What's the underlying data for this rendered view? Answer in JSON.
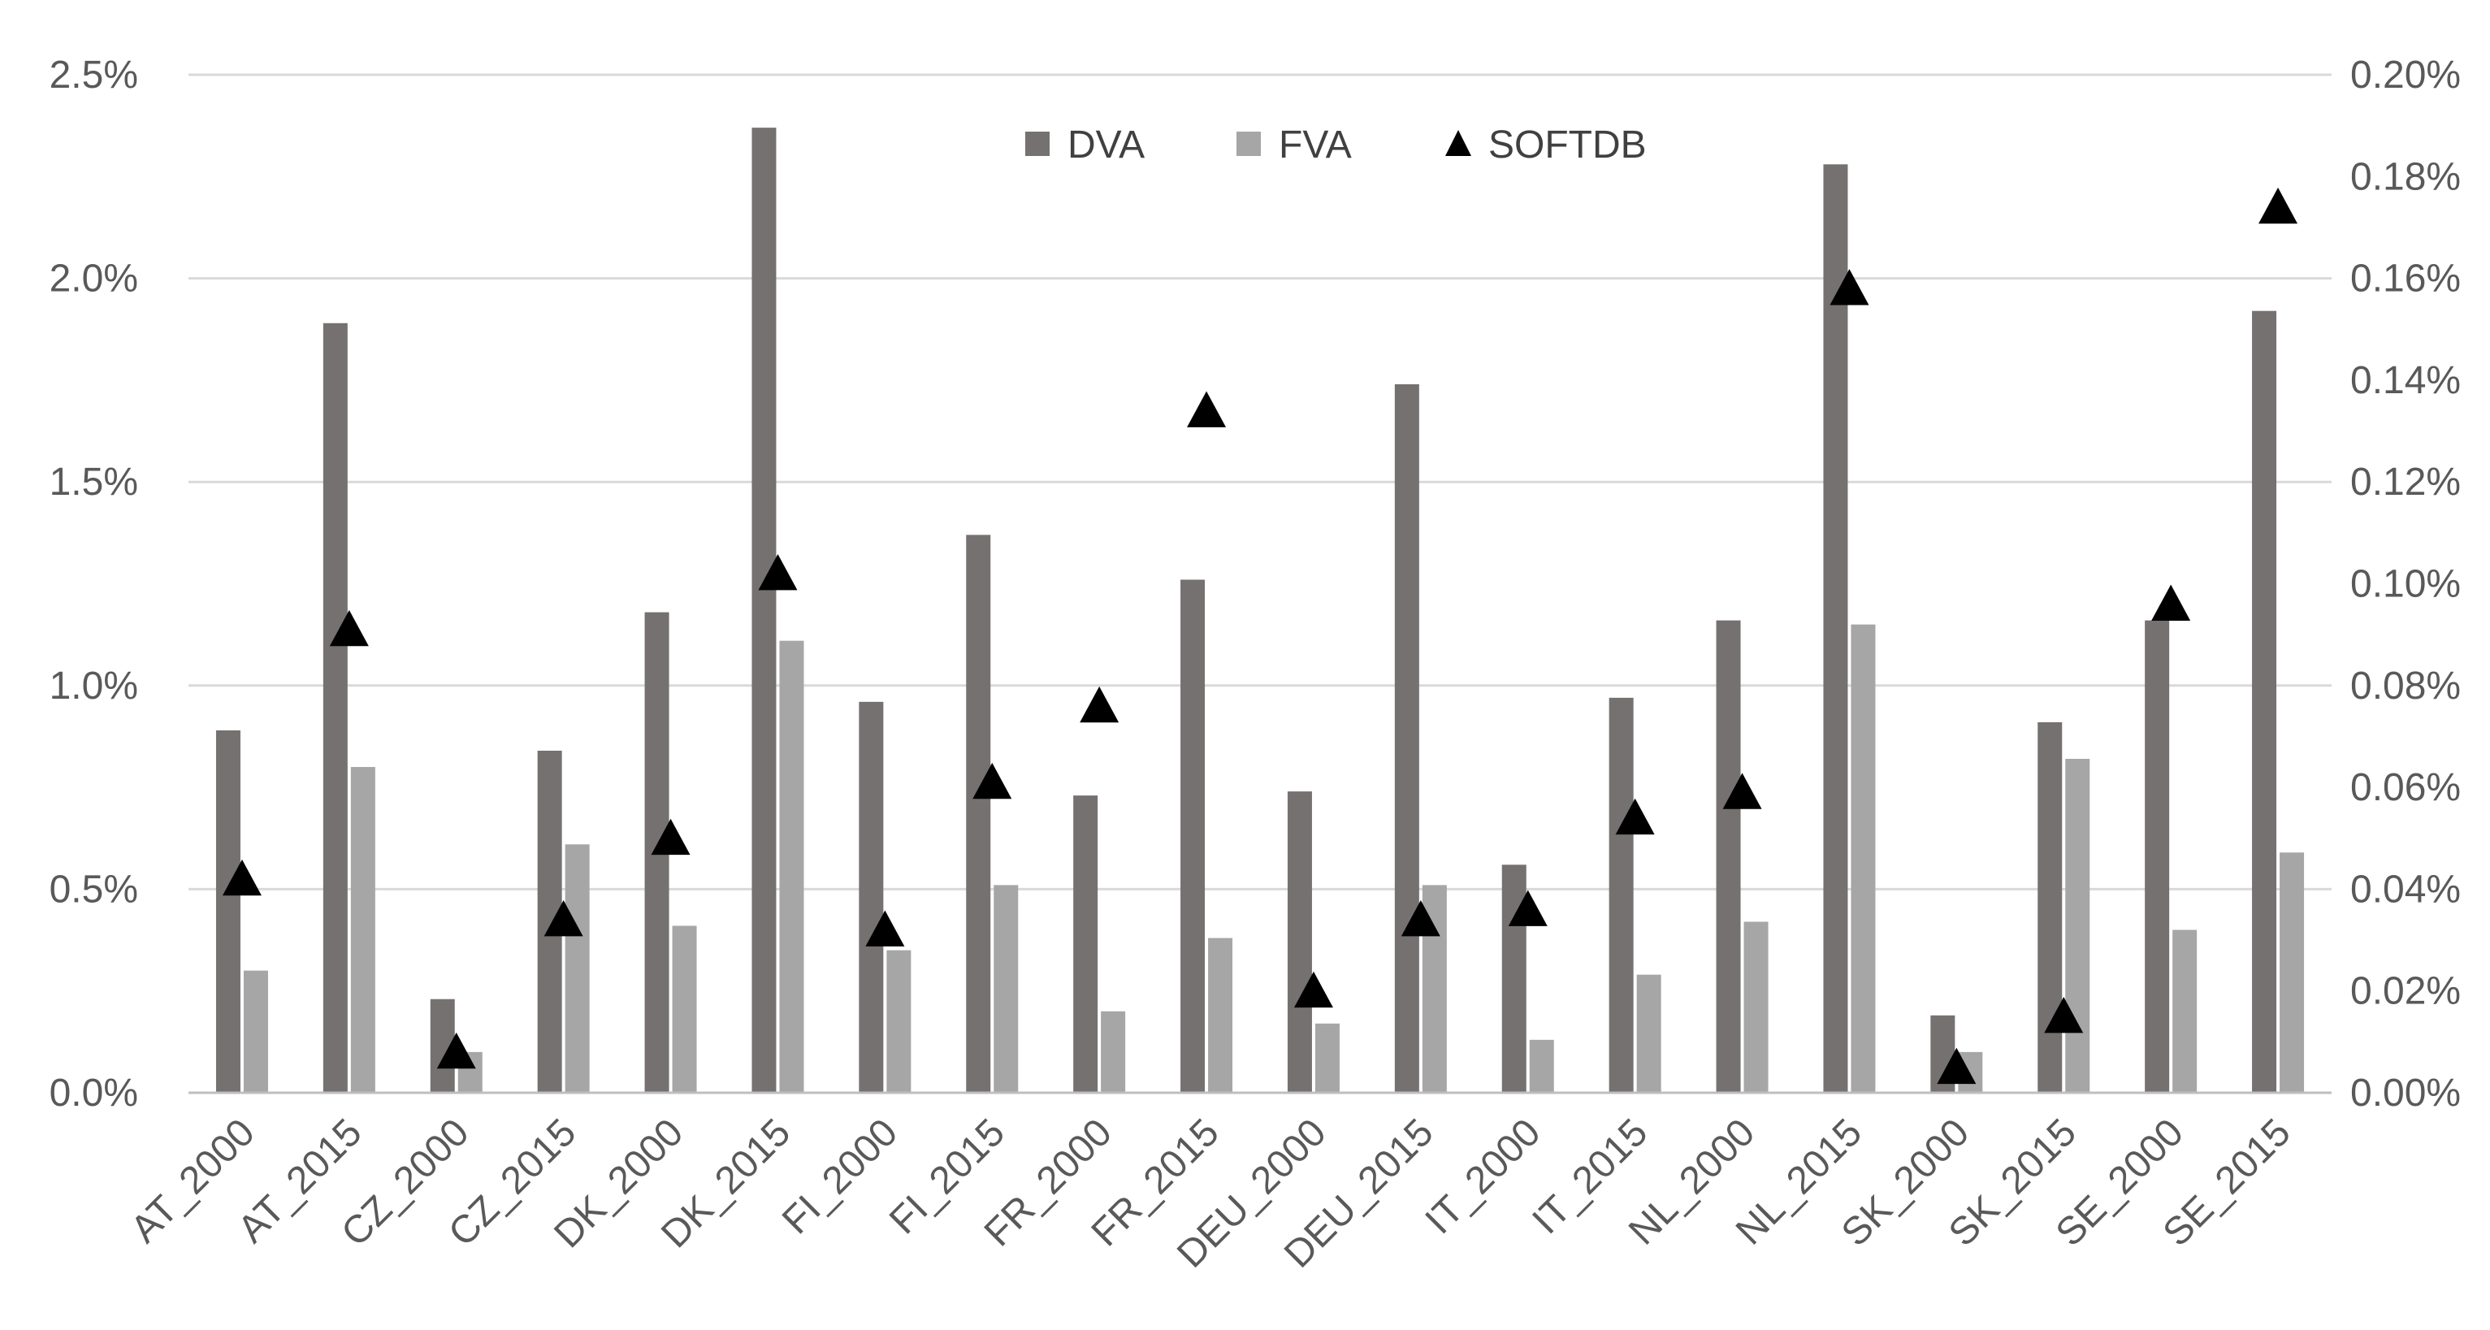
{
  "chart_data": {
    "type": "bar",
    "title": "",
    "xlabel": "",
    "ylabel": "",
    "categories": [
      "AT_2000",
      "AT_2015",
      "CZ_2000",
      "CZ_2015",
      "DK_2000",
      "DK_2015",
      "FI_2000",
      "FI_2015",
      "FR_2000",
      "FR_2015",
      "DEU_2000",
      "DEU_2015",
      "IT_2000",
      "IT_2015",
      "NL_2000",
      "NL_2015",
      "SK_2000",
      "SK_2015",
      "SE_2000",
      "SE_2015"
    ],
    "series": [
      {
        "name": "DVA",
        "kind": "bar",
        "axis": "left",
        "color": "#767171",
        "values": [
          0.89,
          1.89,
          0.23,
          0.84,
          1.18,
          2.37,
          0.96,
          1.37,
          0.73,
          1.26,
          0.74,
          1.74,
          0.56,
          0.97,
          1.16,
          2.28,
          0.19,
          0.91,
          1.16,
          1.92
        ]
      },
      {
        "name": "FVA",
        "kind": "bar",
        "axis": "left",
        "color": "#a6a6a6",
        "values": [
          0.3,
          0.8,
          0.1,
          0.61,
          0.41,
          1.11,
          0.35,
          0.51,
          0.2,
          0.38,
          0.17,
          0.51,
          0.13,
          0.29,
          0.42,
          1.15,
          0.1,
          0.82,
          0.4,
          0.59
        ]
      },
      {
        "name": "SOFTDB",
        "kind": "marker",
        "axis": "right",
        "color": "#000000",
        "values": [
          0.042,
          0.091,
          0.008,
          0.034,
          0.05,
          0.102,
          0.032,
          0.061,
          0.076,
          0.134,
          0.02,
          0.034,
          0.036,
          0.054,
          0.059,
          0.158,
          0.005,
          0.015,
          0.096,
          0.174
        ]
      }
    ],
    "y_left": {
      "min": 0,
      "max": 2.5,
      "ticks": [
        0,
        0.5,
        1.0,
        1.5,
        2.0,
        2.5
      ],
      "tick_labels": [
        "0.0%",
        "0.5%",
        "1.0%",
        "1.5%",
        "2.0%",
        "2.5%"
      ]
    },
    "y_right": {
      "min": 0,
      "max": 0.2,
      "ticks": [
        0,
        0.02,
        0.04,
        0.06,
        0.08,
        0.1,
        0.12,
        0.14,
        0.16,
        0.18,
        0.2
      ],
      "tick_labels": [
        "0.00%",
        "0.02%",
        "0.04%",
        "0.06%",
        "0.08%",
        "0.10%",
        "0.12%",
        "0.14%",
        "0.16%",
        "0.18%",
        "0.20%"
      ]
    },
    "grid": true,
    "legend_position": "top-center",
    "colors": {
      "grid": "#d9d9d9",
      "axis": "#bfbfbf",
      "tick_text": "#595959"
    }
  }
}
